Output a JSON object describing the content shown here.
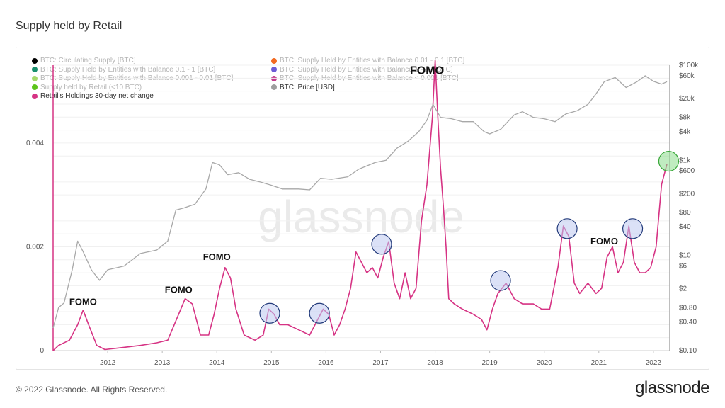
{
  "page": {
    "title": "Supply held by Retail",
    "copyright": "© 2022 Glassnode. All Rights Reserved.",
    "logo": "glassnode",
    "watermark": "glassnode"
  },
  "legend": [
    {
      "label": "BTC: Circulating Supply [BTC]",
      "color": "#000000",
      "active": false
    },
    {
      "label": "BTC: Supply Held by Entities with Balance 0.01 - 0.1 [BTC]",
      "color": "#f26a21",
      "active": false
    },
    {
      "label": "BTC: Supply Held by Entities with Balance 0.1 - 1 [BTC]",
      "color": "#1a8f6e",
      "active": false
    },
    {
      "label": "BTC: Supply Held by Entities with Balance 1 - 10 [BTC]",
      "color": "#6b5bd6",
      "active": false
    },
    {
      "label": "BTC: Supply Held by Entities with Balance 0.001 - 0.01 [BTC]",
      "color": "#a6d96a",
      "active": false
    },
    {
      "label": "BTC: Supply Held by Entities with Balance < 0.001 [BTC]",
      "color": "#c23b8a",
      "active": false
    },
    {
      "label": "Supply held by Retail (<10 BTC)",
      "color": "#5cc41a",
      "active": false
    },
    {
      "label": "BTC: Price [USD]",
      "color": "#9e9e9e",
      "active": true
    },
    {
      "label": "Retail's Holdings 30-day net change",
      "color": "#d63384",
      "active": true
    }
  ],
  "chart_data": {
    "type": "line",
    "x_axis": {
      "range": [
        2011.0,
        2022.3
      ],
      "tick_labels": [
        "2012",
        "2013",
        "2014",
        "2015",
        "2016",
        "2017",
        "2018",
        "2019",
        "2020",
        "2021",
        "2022"
      ]
    },
    "y_left": {
      "range": [
        0,
        0.0055
      ],
      "ticks": [
        0,
        0.002,
        0.004
      ],
      "tick_labels": [
        "0",
        "0.002",
        "0.004"
      ]
    },
    "y_right": {
      "scale": "log",
      "range": [
        0.1,
        100000
      ],
      "ticks": [
        0.1,
        0.4,
        0.8,
        2,
        6,
        10,
        40,
        80,
        200,
        600,
        1000,
        4000,
        8000,
        20000,
        60000,
        100000
      ],
      "tick_labels": [
        "$0.10",
        "$0.40",
        "$0.80",
        "$2",
        "$6",
        "$10",
        "$40",
        "$80",
        "$200",
        "$600",
        "$1k",
        "$4k",
        "$8k",
        "$20k",
        "$60k",
        "$100k"
      ]
    },
    "grid": true,
    "series": [
      {
        "name": "Retail's Holdings 30-day net change",
        "axis": "left",
        "color": "#d63384",
        "x": [
          2011.0,
          2011.1,
          2011.3,
          2011.45,
          2011.55,
          2011.65,
          2011.8,
          2011.95,
          2012.2,
          2012.6,
          2012.9,
          2013.1,
          2013.3,
          2013.42,
          2013.55,
          2013.7,
          2013.85,
          2013.95,
          2014.05,
          2014.15,
          2014.25,
          2014.35,
          2014.5,
          2014.7,
          2014.85,
          2014.95,
          2015.05,
          2015.15,
          2015.3,
          2015.5,
          2015.7,
          2015.85,
          2015.95,
          2016.05,
          2016.15,
          2016.25,
          2016.35,
          2016.45,
          2016.55,
          2016.65,
          2016.75,
          2016.85,
          2016.95,
          2017.05,
          2017.15,
          2017.25,
          2017.35,
          2017.45,
          2017.55,
          2017.65,
          2017.75,
          2017.85,
          2017.95,
          2018.0,
          2018.05,
          2018.1,
          2018.15,
          2018.2,
          2018.25,
          2018.35,
          2018.5,
          2018.7,
          2018.85,
          2018.95,
          2019.05,
          2019.15,
          2019.3,
          2019.45,
          2019.6,
          2019.8,
          2019.95,
          2020.1,
          2020.25,
          2020.35,
          2020.45,
          2020.55,
          2020.65,
          2020.8,
          2020.95,
          2021.05,
          2021.15,
          2021.25,
          2021.35,
          2021.45,
          2021.55,
          2021.65,
          2021.75,
          2021.85,
          2021.95,
          2022.05,
          2022.15,
          2022.25
        ],
        "y": [
          0.0,
          0.0001,
          0.0002,
          0.0005,
          0.00078,
          0.0005,
          0.0001,
          2e-05,
          5e-05,
          0.0001,
          0.00015,
          0.0002,
          0.0007,
          0.001,
          0.0009,
          0.0003,
          0.0003,
          0.0007,
          0.0012,
          0.0016,
          0.0014,
          0.0008,
          0.0003,
          0.0002,
          0.0003,
          0.0008,
          0.0007,
          0.0005,
          0.0005,
          0.0004,
          0.0003,
          0.0006,
          0.0008,
          0.0007,
          0.0003,
          0.0005,
          0.0008,
          0.0012,
          0.0019,
          0.0017,
          0.0015,
          0.0016,
          0.0014,
          0.0018,
          0.0021,
          0.0013,
          0.001,
          0.0015,
          0.001,
          0.0012,
          0.0025,
          0.0032,
          0.0045,
          0.0056,
          0.0045,
          0.0035,
          0.0028,
          0.002,
          0.001,
          0.0009,
          0.0008,
          0.0007,
          0.0006,
          0.0004,
          0.0008,
          0.0011,
          0.0013,
          0.001,
          0.0009,
          0.0009,
          0.0008,
          0.0008,
          0.0016,
          0.0024,
          0.0022,
          0.0013,
          0.0011,
          0.0013,
          0.0011,
          0.0012,
          0.0018,
          0.002,
          0.0015,
          0.0017,
          0.0024,
          0.0017,
          0.0015,
          0.0015,
          0.0016,
          0.002,
          0.0032,
          0.0036
        ]
      },
      {
        "name": "BTC: Price [USD]",
        "axis": "right",
        "color": "#a8a8a8",
        "x": [
          2011.0,
          2011.1,
          2011.2,
          2011.35,
          2011.45,
          2011.55,
          2011.7,
          2011.85,
          2012.0,
          2012.3,
          2012.6,
          2012.9,
          2013.1,
          2013.25,
          2013.4,
          2013.6,
          2013.8,
          2013.92,
          2014.05,
          2014.2,
          2014.4,
          2014.6,
          2014.8,
          2015.0,
          2015.2,
          2015.5,
          2015.7,
          2015.9,
          2016.1,
          2016.4,
          2016.6,
          2016.9,
          2017.1,
          2017.3,
          2017.5,
          2017.7,
          2017.85,
          2017.96,
          2018.1,
          2018.3,
          2018.5,
          2018.7,
          2018.9,
          2019.0,
          2019.2,
          2019.45,
          2019.6,
          2019.8,
          2020.0,
          2020.2,
          2020.4,
          2020.6,
          2020.8,
          2020.95,
          2021.1,
          2021.3,
          2021.5,
          2021.7,
          2021.85,
          2022.0,
          2022.15,
          2022.25
        ],
        "y": [
          0.3,
          0.8,
          1,
          5,
          20,
          12,
          5,
          3,
          5,
          6,
          11,
          13,
          20,
          90,
          100,
          120,
          250,
          900,
          800,
          500,
          550,
          400,
          350,
          300,
          250,
          250,
          240,
          420,
          400,
          450,
          650,
          900,
          1000,
          1800,
          2500,
          4000,
          7000,
          15000,
          8000,
          7500,
          6500,
          6500,
          4000,
          3600,
          4500,
          9000,
          10500,
          8000,
          7500,
          6500,
          9500,
          11000,
          15000,
          25000,
          45000,
          55000,
          34000,
          45000,
          60000,
          46000,
          40000,
          45000
        ]
      }
    ],
    "annotations": [
      {
        "text": "FOMO",
        "x": 2011.55,
        "y": 0.00088
      },
      {
        "text": "FOMO",
        "x": 2013.3,
        "y": 0.00111
      },
      {
        "text": "FOMO",
        "x": 2014.0,
        "y": 0.00175
      },
      {
        "text": "FOMO",
        "x": 2017.85,
        "y": 0.00533
      },
      {
        "text": "FOMO",
        "x": 2021.1,
        "y": 0.00205
      }
    ],
    "highlights": [
      {
        "x": 2014.97,
        "y": 0.00072,
        "style": "blue"
      },
      {
        "x": 2015.88,
        "y": 0.00072,
        "style": "blue"
      },
      {
        "x": 2017.02,
        "y": 0.00205,
        "style": "blue"
      },
      {
        "x": 2019.2,
        "y": 0.00135,
        "style": "blue"
      },
      {
        "x": 2020.42,
        "y": 0.00235,
        "style": "blue"
      },
      {
        "x": 2021.62,
        "y": 0.00235,
        "style": "blue"
      },
      {
        "x": 2022.28,
        "y": 0.00365,
        "style": "green"
      }
    ]
  }
}
